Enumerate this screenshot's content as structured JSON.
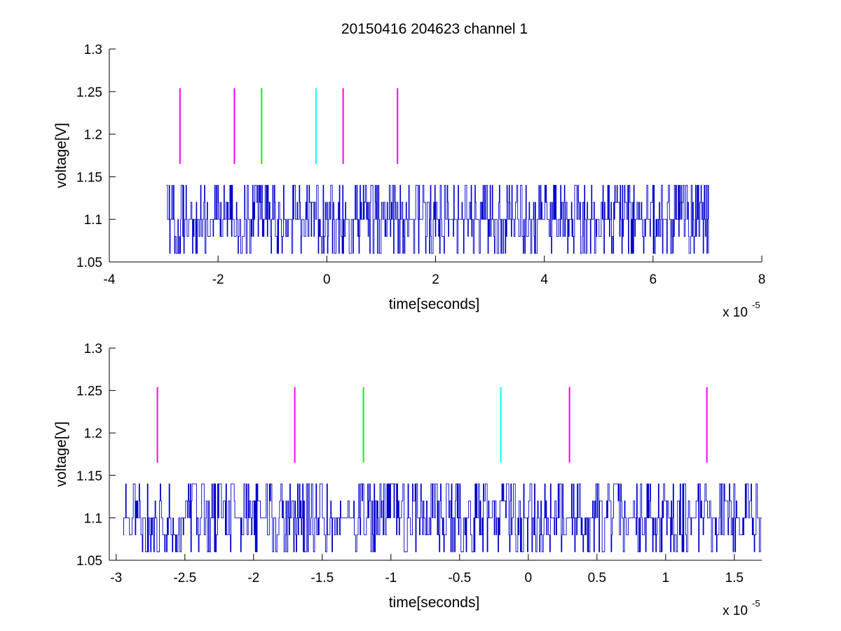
{
  "title": "20150416 204623 channel 1",
  "chart_data": [
    {
      "type": "line",
      "xlabel": "time[seconds]",
      "ylabel": "voltage[V]",
      "xlim": [
        -4e-05,
        8e-05
      ],
      "ylim": [
        1.05,
        1.3
      ],
      "x_exponent_label": "x 10",
      "x_exponent_power": "-5",
      "x_ticks": [
        -4,
        -2,
        0,
        2,
        4,
        6,
        8
      ],
      "x_tick_labels": [
        "-4",
        "-2",
        "0",
        "2",
        "4",
        "6",
        "8"
      ],
      "y_ticks": [
        1.05,
        1.1,
        1.15,
        1.2,
        1.25,
        1.3
      ],
      "y_tick_labels": [
        "1.05",
        "1.1",
        "1.15",
        "1.2",
        "1.25",
        "1.3"
      ],
      "grid": false,
      "box": "left-bottom",
      "series": [
        {
          "color": "#0000cc",
          "signal_x_range": [
            -2.95e-05,
            7.02e-05
          ],
          "signal_levels": [
            1.06,
            1.08,
            1.1,
            1.12,
            1.14
          ],
          "baseline": 1.1
        }
      ],
      "markers": [
        {
          "x": -2.7e-05,
          "color": "#ff00ff",
          "y_range": [
            1.165,
            1.254
          ]
        },
        {
          "x": -1.7e-05,
          "color": "#ff00ff",
          "y_range": [
            1.165,
            1.254
          ]
        },
        {
          "x": -1.2e-05,
          "color": "#00ff00",
          "y_range": [
            1.165,
            1.254
          ]
        },
        {
          "x": -2e-06,
          "color": "#00ffff",
          "y_range": [
            1.165,
            1.254
          ]
        },
        {
          "x": 3e-06,
          "color": "#ff00ff",
          "y_range": [
            1.165,
            1.254
          ]
        },
        {
          "x": 1.3e-05,
          "color": "#ff00ff",
          "y_range": [
            1.165,
            1.254
          ]
        }
      ]
    },
    {
      "type": "line",
      "xlabel": "time[seconds]",
      "ylabel": "voltage[V]",
      "xlim": [
        -3.05e-05,
        1.7e-05
      ],
      "ylim": [
        1.05,
        1.3
      ],
      "x_exponent_label": "x 10",
      "x_exponent_power": "-5",
      "x_ticks": [
        -3,
        -2.5,
        -2,
        -1.5,
        -1,
        -0.5,
        0,
        0.5,
        1,
        1.5
      ],
      "x_tick_labels": [
        "-3",
        "-2.5",
        "-2",
        "-1.5",
        "-1",
        "-0.5",
        "0",
        "0.5",
        "1",
        "1.5"
      ],
      "y_ticks": [
        1.05,
        1.1,
        1.15,
        1.2,
        1.25,
        1.3
      ],
      "y_tick_labels": [
        "1.05",
        "1.1",
        "1.15",
        "1.2",
        "1.25",
        "1.3"
      ],
      "grid": false,
      "box": "left-bottom",
      "series": [
        {
          "color": "#0000cc",
          "signal_x_range": [
            -2.95e-05,
            1.7e-05
          ],
          "signal_levels": [
            1.06,
            1.08,
            1.1,
            1.12,
            1.14
          ],
          "baseline": 1.1
        }
      ],
      "markers": [
        {
          "x": -2.7e-05,
          "color": "#ff00ff",
          "y_range": [
            1.165,
            1.254
          ]
        },
        {
          "x": -1.7e-05,
          "color": "#ff00ff",
          "y_range": [
            1.165,
            1.254
          ]
        },
        {
          "x": -1.2e-05,
          "color": "#00ff00",
          "y_range": [
            1.165,
            1.254
          ]
        },
        {
          "x": -2e-06,
          "color": "#00ffff",
          "y_range": [
            1.165,
            1.254
          ]
        },
        {
          "x": 3e-06,
          "color": "#ff00ff",
          "y_range": [
            1.165,
            1.254
          ]
        },
        {
          "x": 1.3e-05,
          "color": "#ff00ff",
          "y_range": [
            1.165,
            1.254
          ]
        }
      ]
    }
  ]
}
